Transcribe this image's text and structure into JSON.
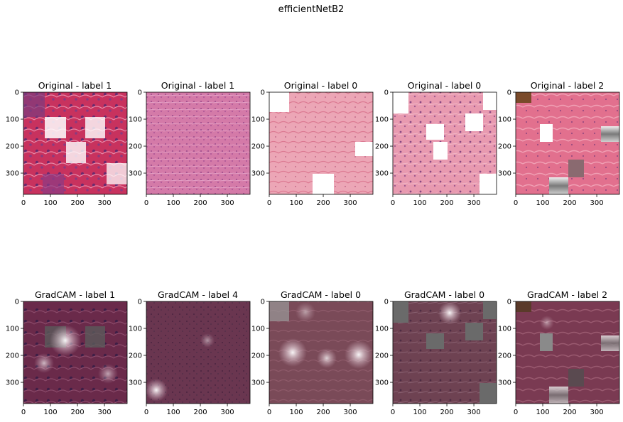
{
  "figure": {
    "title": "efficientNetB2",
    "x_ticks": [
      "0",
      "100",
      "200",
      "300"
    ],
    "y_ticks": [
      "0",
      "100",
      "200",
      "300"
    ],
    "rows": [
      {
        "kind": "original",
        "panels": [
          {
            "title": "Original - label 1"
          },
          {
            "title": "Original - label 1"
          },
          {
            "title": "Original - label 0"
          },
          {
            "title": "Original - label 0"
          },
          {
            "title": "Original - label 2"
          }
        ]
      },
      {
        "kind": "gradcam",
        "panels": [
          {
            "title": "GradCAM - label 1"
          },
          {
            "title": "GradCAM - label 4"
          },
          {
            "title": "GradCAM - label 0"
          },
          {
            "title": "GradCAM - label 0"
          },
          {
            "title": "GradCAM - label 2"
          }
        ]
      }
    ]
  },
  "colors": {
    "background": "#ffffff",
    "axis": "#000000"
  }
}
